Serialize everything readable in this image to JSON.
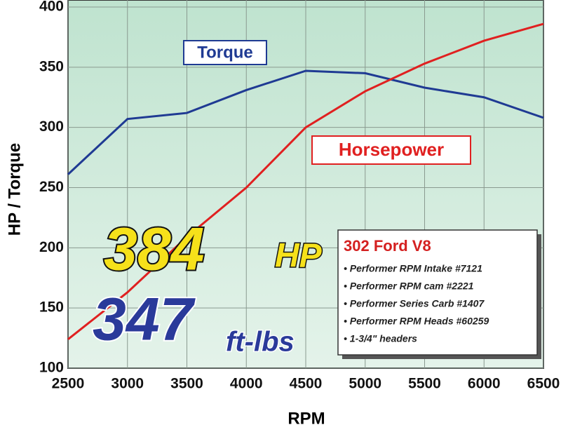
{
  "chart_data": {
    "type": "line",
    "x": [
      2500,
      3000,
      3500,
      4000,
      4500,
      5000,
      5500,
      6000,
      6500
    ],
    "series": [
      {
        "name": "Torque",
        "color": "#1f3a93",
        "values": [
          261,
          307,
          312,
          331,
          347,
          345,
          333,
          325,
          308
        ]
      },
      {
        "name": "Horsepower",
        "color": "#e02020",
        "values": [
          124,
          163,
          209,
          250,
          300,
          330,
          353,
          372,
          386
        ]
      }
    ],
    "xlim": [
      2500,
      6500
    ],
    "xticks": [
      2500,
      3000,
      3500,
      4000,
      4500,
      5000,
      5500,
      6000,
      6500
    ],
    "ylim": [
      100,
      400
    ],
    "yticks": [
      100,
      150,
      200,
      250,
      300,
      350,
      400
    ],
    "xlabel": "RPM",
    "ylabel": "HP / Torque",
    "grid": true,
    "headline": {
      "hp": "384",
      "hp_unit": "HP",
      "torque": "347",
      "torque_unit": "ft-lbs"
    },
    "spec_box": {
      "title": "302 Ford V8",
      "items": [
        "• Performer RPM Intake #7121",
        "• Performer RPM cam #2221",
        "• Performer Series Carb #1407",
        "• Performer RPM Heads #60259",
        "• 1-3/4\" headers"
      ]
    }
  }
}
